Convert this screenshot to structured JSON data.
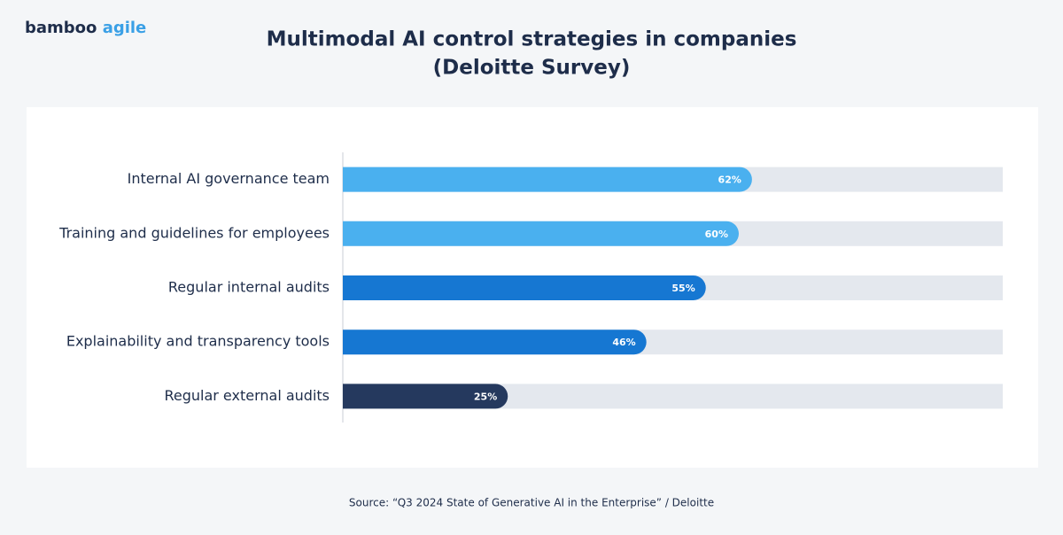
{
  "logo": {
    "brand": "bamboo",
    "accent": "agile"
  },
  "chart_data": {
    "type": "bar",
    "orientation": "horizontal",
    "title": "Multimodal AI control strategies in companies",
    "subtitle": "(Deloitte Survey)",
    "categories": [
      "Internal AI governance team",
      "Training and guidelines for employees",
      "Regular internal audits",
      "Explainability and transparency tools",
      "Regular external audits"
    ],
    "values": [
      62,
      60,
      55,
      46,
      25
    ],
    "value_labels": [
      "62%",
      "60%",
      "55%",
      "46%",
      "25%"
    ],
    "colors": [
      "#4ab0ef",
      "#4ab0ef",
      "#1677d2",
      "#1677d2",
      "#25395e"
    ],
    "track_color": "#e4e8ee",
    "xlim": [
      0,
      100
    ]
  },
  "source": "Source: “Q3 2024 State of Generative AI in the Enterprise” / Deloitte"
}
